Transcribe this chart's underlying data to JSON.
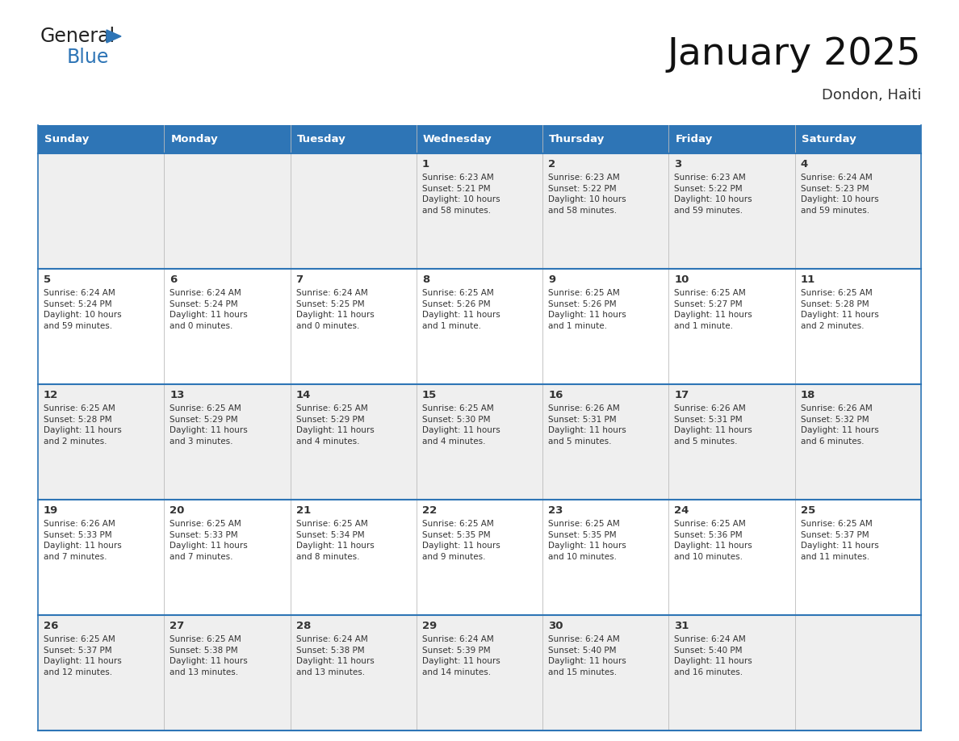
{
  "title": "January 2025",
  "subtitle": "Dondon, Haiti",
  "header_color": "#2E75B6",
  "header_text_color": "#FFFFFF",
  "days_of_week": [
    "Sunday",
    "Monday",
    "Tuesday",
    "Wednesday",
    "Thursday",
    "Friday",
    "Saturday"
  ],
  "row_bg_colors": [
    "#EFEFEF",
    "#FFFFFF"
  ],
  "border_color": "#2E75B6",
  "cell_border_color": "#2E75B6",
  "text_color": "#333333",
  "calendar_data": [
    [
      {
        "day": "",
        "info": ""
      },
      {
        "day": "",
        "info": ""
      },
      {
        "day": "",
        "info": ""
      },
      {
        "day": "1",
        "info": "Sunrise: 6:23 AM\nSunset: 5:21 PM\nDaylight: 10 hours\nand 58 minutes."
      },
      {
        "day": "2",
        "info": "Sunrise: 6:23 AM\nSunset: 5:22 PM\nDaylight: 10 hours\nand 58 minutes."
      },
      {
        "day": "3",
        "info": "Sunrise: 6:23 AM\nSunset: 5:22 PM\nDaylight: 10 hours\nand 59 minutes."
      },
      {
        "day": "4",
        "info": "Sunrise: 6:24 AM\nSunset: 5:23 PM\nDaylight: 10 hours\nand 59 minutes."
      }
    ],
    [
      {
        "day": "5",
        "info": "Sunrise: 6:24 AM\nSunset: 5:24 PM\nDaylight: 10 hours\nand 59 minutes."
      },
      {
        "day": "6",
        "info": "Sunrise: 6:24 AM\nSunset: 5:24 PM\nDaylight: 11 hours\nand 0 minutes."
      },
      {
        "day": "7",
        "info": "Sunrise: 6:24 AM\nSunset: 5:25 PM\nDaylight: 11 hours\nand 0 minutes."
      },
      {
        "day": "8",
        "info": "Sunrise: 6:25 AM\nSunset: 5:26 PM\nDaylight: 11 hours\nand 1 minute."
      },
      {
        "day": "9",
        "info": "Sunrise: 6:25 AM\nSunset: 5:26 PM\nDaylight: 11 hours\nand 1 minute."
      },
      {
        "day": "10",
        "info": "Sunrise: 6:25 AM\nSunset: 5:27 PM\nDaylight: 11 hours\nand 1 minute."
      },
      {
        "day": "11",
        "info": "Sunrise: 6:25 AM\nSunset: 5:28 PM\nDaylight: 11 hours\nand 2 minutes."
      }
    ],
    [
      {
        "day": "12",
        "info": "Sunrise: 6:25 AM\nSunset: 5:28 PM\nDaylight: 11 hours\nand 2 minutes."
      },
      {
        "day": "13",
        "info": "Sunrise: 6:25 AM\nSunset: 5:29 PM\nDaylight: 11 hours\nand 3 minutes."
      },
      {
        "day": "14",
        "info": "Sunrise: 6:25 AM\nSunset: 5:29 PM\nDaylight: 11 hours\nand 4 minutes."
      },
      {
        "day": "15",
        "info": "Sunrise: 6:25 AM\nSunset: 5:30 PM\nDaylight: 11 hours\nand 4 minutes."
      },
      {
        "day": "16",
        "info": "Sunrise: 6:26 AM\nSunset: 5:31 PM\nDaylight: 11 hours\nand 5 minutes."
      },
      {
        "day": "17",
        "info": "Sunrise: 6:26 AM\nSunset: 5:31 PM\nDaylight: 11 hours\nand 5 minutes."
      },
      {
        "day": "18",
        "info": "Sunrise: 6:26 AM\nSunset: 5:32 PM\nDaylight: 11 hours\nand 6 minutes."
      }
    ],
    [
      {
        "day": "19",
        "info": "Sunrise: 6:26 AM\nSunset: 5:33 PM\nDaylight: 11 hours\nand 7 minutes."
      },
      {
        "day": "20",
        "info": "Sunrise: 6:25 AM\nSunset: 5:33 PM\nDaylight: 11 hours\nand 7 minutes."
      },
      {
        "day": "21",
        "info": "Sunrise: 6:25 AM\nSunset: 5:34 PM\nDaylight: 11 hours\nand 8 minutes."
      },
      {
        "day": "22",
        "info": "Sunrise: 6:25 AM\nSunset: 5:35 PM\nDaylight: 11 hours\nand 9 minutes."
      },
      {
        "day": "23",
        "info": "Sunrise: 6:25 AM\nSunset: 5:35 PM\nDaylight: 11 hours\nand 10 minutes."
      },
      {
        "day": "24",
        "info": "Sunrise: 6:25 AM\nSunset: 5:36 PM\nDaylight: 11 hours\nand 10 minutes."
      },
      {
        "day": "25",
        "info": "Sunrise: 6:25 AM\nSunset: 5:37 PM\nDaylight: 11 hours\nand 11 minutes."
      }
    ],
    [
      {
        "day": "26",
        "info": "Sunrise: 6:25 AM\nSunset: 5:37 PM\nDaylight: 11 hours\nand 12 minutes."
      },
      {
        "day": "27",
        "info": "Sunrise: 6:25 AM\nSunset: 5:38 PM\nDaylight: 11 hours\nand 13 minutes."
      },
      {
        "day": "28",
        "info": "Sunrise: 6:24 AM\nSunset: 5:38 PM\nDaylight: 11 hours\nand 13 minutes."
      },
      {
        "day": "29",
        "info": "Sunrise: 6:24 AM\nSunset: 5:39 PM\nDaylight: 11 hours\nand 14 minutes."
      },
      {
        "day": "30",
        "info": "Sunrise: 6:24 AM\nSunset: 5:40 PM\nDaylight: 11 hours\nand 15 minutes."
      },
      {
        "day": "31",
        "info": "Sunrise: 6:24 AM\nSunset: 5:40 PM\nDaylight: 11 hours\nand 16 minutes."
      },
      {
        "day": "",
        "info": ""
      }
    ]
  ],
  "logo_color_general": "#222222",
  "logo_color_blue": "#2E75B6",
  "fig_width": 11.88,
  "fig_height": 9.18,
  "dpi": 100
}
